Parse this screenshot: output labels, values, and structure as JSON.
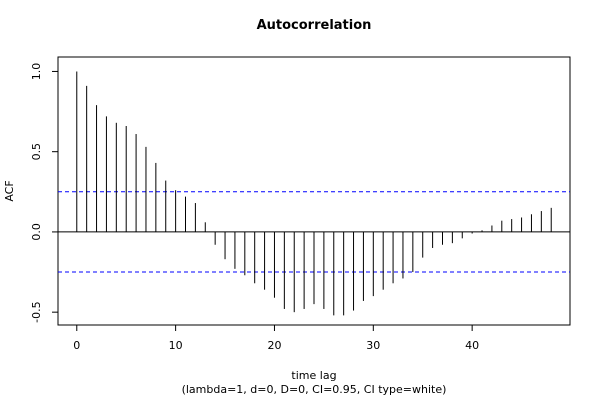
{
  "chart_data": {
    "type": "bar",
    "title": "Autocorrelation",
    "xlabel": "time lag",
    "ylabel": "ACF",
    "subtitle": "(lambda=1, d=0, D=0, CI=0.95, CI type=white)",
    "xlim": [
      -1.9,
      49.9
    ],
    "ylim": [
      -0.58,
      1.09
    ],
    "x_ticks": [
      0,
      10,
      20,
      30,
      40
    ],
    "y_ticks": [
      -0.5,
      0.0,
      0.5,
      1.0
    ],
    "y_tick_labels": [
      "-0.5",
      "0.0",
      "0.5",
      "1.0"
    ],
    "confidence_band": [
      0.25,
      -0.25
    ],
    "lags": [
      0,
      1,
      2,
      3,
      4,
      5,
      6,
      7,
      8,
      9,
      10,
      11,
      12,
      13,
      14,
      15,
      16,
      17,
      18,
      19,
      20,
      21,
      22,
      23,
      24,
      25,
      26,
      27,
      28,
      29,
      30,
      31,
      32,
      33,
      34,
      35,
      36,
      37,
      38,
      39,
      40,
      41,
      42,
      43,
      44,
      45,
      46,
      47,
      48
    ],
    "acf": [
      1.0,
      0.91,
      0.79,
      0.72,
      0.68,
      0.66,
      0.61,
      0.53,
      0.43,
      0.32,
      0.26,
      0.22,
      0.18,
      0.06,
      -0.08,
      -0.17,
      -0.23,
      -0.27,
      -0.32,
      -0.36,
      -0.41,
      -0.48,
      -0.5,
      -0.48,
      -0.45,
      -0.48,
      -0.52,
      -0.52,
      -0.49,
      -0.43,
      -0.4,
      -0.36,
      -0.32,
      -0.29,
      -0.25,
      -0.16,
      -0.1,
      -0.08,
      -0.07,
      -0.04,
      -0.01,
      0.01,
      0.04,
      0.07,
      0.08,
      0.09,
      0.11,
      0.13,
      0.15
    ],
    "colors": {
      "bars": "#000000",
      "confidence": "#0000ff"
    }
  }
}
